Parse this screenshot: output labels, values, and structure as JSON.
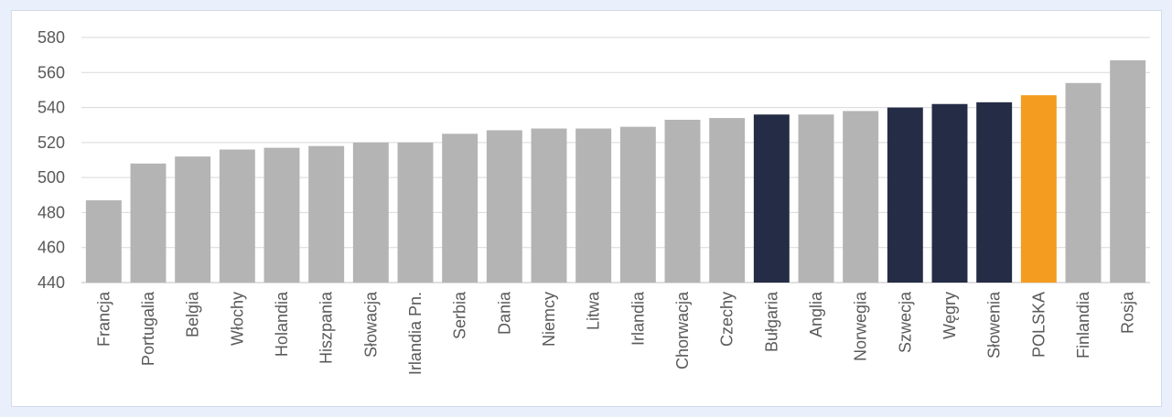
{
  "chart_data": {
    "type": "bar",
    "title": "",
    "xlabel": "",
    "ylabel": "",
    "ylim": [
      440,
      580
    ],
    "yticks": [
      440,
      460,
      480,
      500,
      520,
      540,
      560,
      580
    ],
    "grid": true,
    "legend": "none",
    "categories": [
      "Francja",
      "Portugalia",
      "Belgia",
      "Włochy",
      "Holandia",
      "Hiszpania",
      "Słowacja",
      "Irlandia Pn.",
      "Serbia",
      "Dania",
      "Niemcy",
      "Litwa",
      "Irlandia",
      "Chorwacja",
      "Czechy",
      "Bułgaria",
      "Anglia",
      "Norwegia",
      "Szwecja",
      "Węgry",
      "Słowenia",
      "POLSKA",
      "Finlandia",
      "Rosja"
    ],
    "values": [
      487,
      508,
      512,
      516,
      517,
      518,
      520,
      520,
      525,
      527,
      528,
      528,
      529,
      533,
      534,
      536,
      536,
      538,
      540,
      542,
      543,
      547,
      554,
      567
    ],
    "bar_colors": [
      "#b4b4b4",
      "#b4b4b4",
      "#b4b4b4",
      "#b4b4b4",
      "#b4b4b4",
      "#b4b4b4",
      "#b4b4b4",
      "#b4b4b4",
      "#b4b4b4",
      "#b4b4b4",
      "#b4b4b4",
      "#b4b4b4",
      "#b4b4b4",
      "#b4b4b4",
      "#b4b4b4",
      "#252c45",
      "#b4b4b4",
      "#b4b4b4",
      "#252c45",
      "#252c45",
      "#252c45",
      "#f39c1f",
      "#b4b4b4",
      "#b4b4b4"
    ]
  }
}
